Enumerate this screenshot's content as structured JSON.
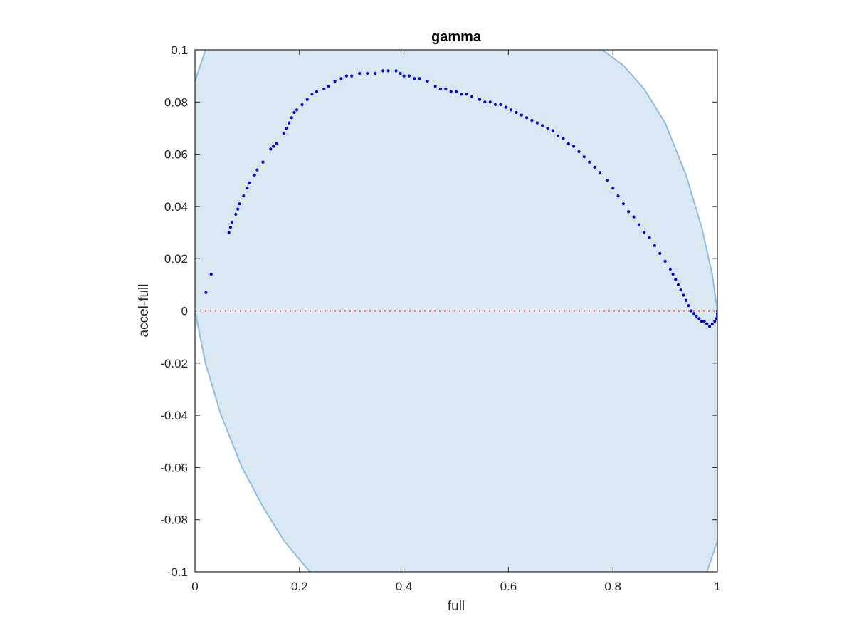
{
  "chart_data": {
    "type": "scatter",
    "title": "gamma",
    "xlabel": "full",
    "ylabel": "accel-full",
    "xlim": [
      0,
      1
    ],
    "ylim": [
      -0.1,
      0.1
    ],
    "x_ticks": [
      0,
      0.2,
      0.4,
      0.6,
      0.8,
      1
    ],
    "x_tick_labels": [
      "0",
      "0.2",
      "0.4",
      "0.6",
      "0.8",
      "1"
    ],
    "y_ticks": [
      -0.1,
      -0.08,
      -0.06,
      -0.04,
      -0.02,
      0,
      0.02,
      0.04,
      0.06,
      0.08,
      0.1
    ],
    "y_tick_labels": [
      "-0.1",
      "-0.08",
      "-0.06",
      "-0.04",
      "-0.02",
      "0",
      "0.02",
      "0.04",
      "0.06",
      "0.08",
      "0.1"
    ],
    "grid": false,
    "colors": {
      "points": "#0000e6",
      "region_fill": "#d9e8f3",
      "region_edge": "#8cbfe2",
      "zero_line": "#ff2a2a",
      "axis": "#262626"
    },
    "region_curves": {
      "left_boundary": [
        {
          "x": 0.0,
          "y": 0.088
        },
        {
          "x": 0.02,
          "y": 0.1
        }
      ],
      "left_lower_boundary": [
        {
          "x": 0.0,
          "y": 0.0
        },
        {
          "x": 0.02,
          "y": -0.02
        },
        {
          "x": 0.05,
          "y": -0.04
        },
        {
          "x": 0.09,
          "y": -0.06
        },
        {
          "x": 0.13,
          "y": -0.075
        },
        {
          "x": 0.17,
          "y": -0.088
        },
        {
          "x": 0.22,
          "y": -0.1
        }
      ],
      "right_upper_boundary": [
        {
          "x": 0.78,
          "y": 0.1
        },
        {
          "x": 0.82,
          "y": 0.094
        },
        {
          "x": 0.86,
          "y": 0.085
        },
        {
          "x": 0.9,
          "y": 0.072
        },
        {
          "x": 0.94,
          "y": 0.052
        },
        {
          "x": 0.97,
          "y": 0.032
        },
        {
          "x": 0.99,
          "y": 0.014
        },
        {
          "x": 1.0,
          "y": 0.0
        }
      ],
      "right_lower_boundary": [
        {
          "x": 0.98,
          "y": -0.1
        },
        {
          "x": 1.0,
          "y": -0.088
        }
      ]
    },
    "zero_line": {
      "y": 0,
      "style": "dotted"
    },
    "points": [
      {
        "x": 0.021,
        "y": 0.007
      },
      {
        "x": 0.031,
        "y": 0.014
      },
      {
        "x": 0.065,
        "y": 0.03
      },
      {
        "x": 0.068,
        "y": 0.032
      },
      {
        "x": 0.071,
        "y": 0.034
      },
      {
        "x": 0.078,
        "y": 0.037
      },
      {
        "x": 0.082,
        "y": 0.039
      },
      {
        "x": 0.085,
        "y": 0.041
      },
      {
        "x": 0.093,
        "y": 0.044
      },
      {
        "x": 0.1,
        "y": 0.047
      },
      {
        "x": 0.104,
        "y": 0.049
      },
      {
        "x": 0.114,
        "y": 0.052
      },
      {
        "x": 0.119,
        "y": 0.054
      },
      {
        "x": 0.13,
        "y": 0.057
      },
      {
        "x": 0.145,
        "y": 0.062
      },
      {
        "x": 0.15,
        "y": 0.063
      },
      {
        "x": 0.156,
        "y": 0.064
      },
      {
        "x": 0.17,
        "y": 0.068
      },
      {
        "x": 0.175,
        "y": 0.07
      },
      {
        "x": 0.18,
        "y": 0.072
      },
      {
        "x": 0.185,
        "y": 0.074
      },
      {
        "x": 0.19,
        "y": 0.076
      },
      {
        "x": 0.195,
        "y": 0.077
      },
      {
        "x": 0.205,
        "y": 0.079
      },
      {
        "x": 0.215,
        "y": 0.081
      },
      {
        "x": 0.224,
        "y": 0.083
      },
      {
        "x": 0.233,
        "y": 0.084
      },
      {
        "x": 0.247,
        "y": 0.085
      },
      {
        "x": 0.256,
        "y": 0.086
      },
      {
        "x": 0.268,
        "y": 0.088
      },
      {
        "x": 0.28,
        "y": 0.089
      },
      {
        "x": 0.29,
        "y": 0.09
      },
      {
        "x": 0.3,
        "y": 0.09
      },
      {
        "x": 0.315,
        "y": 0.091
      },
      {
        "x": 0.33,
        "y": 0.091
      },
      {
        "x": 0.345,
        "y": 0.091
      },
      {
        "x": 0.36,
        "y": 0.092
      },
      {
        "x": 0.37,
        "y": 0.092
      },
      {
        "x": 0.385,
        "y": 0.092
      },
      {
        "x": 0.393,
        "y": 0.091
      },
      {
        "x": 0.4,
        "y": 0.09
      },
      {
        "x": 0.41,
        "y": 0.09
      },
      {
        "x": 0.42,
        "y": 0.089
      },
      {
        "x": 0.43,
        "y": 0.089
      },
      {
        "x": 0.445,
        "y": 0.088
      },
      {
        "x": 0.46,
        "y": 0.086
      },
      {
        "x": 0.47,
        "y": 0.085
      },
      {
        "x": 0.48,
        "y": 0.085
      },
      {
        "x": 0.49,
        "y": 0.084
      },
      {
        "x": 0.5,
        "y": 0.084
      },
      {
        "x": 0.51,
        "y": 0.083
      },
      {
        "x": 0.52,
        "y": 0.083
      },
      {
        "x": 0.53,
        "y": 0.082
      },
      {
        "x": 0.545,
        "y": 0.081
      },
      {
        "x": 0.555,
        "y": 0.08
      },
      {
        "x": 0.565,
        "y": 0.08
      },
      {
        "x": 0.575,
        "y": 0.079
      },
      {
        "x": 0.585,
        "y": 0.079
      },
      {
        "x": 0.595,
        "y": 0.078
      },
      {
        "x": 0.605,
        "y": 0.077
      },
      {
        "x": 0.615,
        "y": 0.076
      },
      {
        "x": 0.625,
        "y": 0.075
      },
      {
        "x": 0.635,
        "y": 0.074
      },
      {
        "x": 0.645,
        "y": 0.073
      },
      {
        "x": 0.655,
        "y": 0.072
      },
      {
        "x": 0.665,
        "y": 0.071
      },
      {
        "x": 0.675,
        "y": 0.07
      },
      {
        "x": 0.685,
        "y": 0.069
      },
      {
        "x": 0.695,
        "y": 0.067
      },
      {
        "x": 0.705,
        "y": 0.066
      },
      {
        "x": 0.715,
        "y": 0.064
      },
      {
        "x": 0.725,
        "y": 0.063
      },
      {
        "x": 0.735,
        "y": 0.061
      },
      {
        "x": 0.745,
        "y": 0.059
      },
      {
        "x": 0.755,
        "y": 0.057
      },
      {
        "x": 0.765,
        "y": 0.055
      },
      {
        "x": 0.775,
        "y": 0.053
      },
      {
        "x": 0.79,
        "y": 0.05
      },
      {
        "x": 0.8,
        "y": 0.047
      },
      {
        "x": 0.81,
        "y": 0.044
      },
      {
        "x": 0.82,
        "y": 0.041
      },
      {
        "x": 0.83,
        "y": 0.038
      },
      {
        "x": 0.84,
        "y": 0.036
      },
      {
        "x": 0.85,
        "y": 0.033
      },
      {
        "x": 0.86,
        "y": 0.03
      },
      {
        "x": 0.87,
        "y": 0.028
      },
      {
        "x": 0.88,
        "y": 0.025
      },
      {
        "x": 0.89,
        "y": 0.022
      },
      {
        "x": 0.9,
        "y": 0.019
      },
      {
        "x": 0.91,
        "y": 0.016
      },
      {
        "x": 0.915,
        "y": 0.014
      },
      {
        "x": 0.92,
        "y": 0.012
      },
      {
        "x": 0.925,
        "y": 0.01
      },
      {
        "x": 0.93,
        "y": 0.008
      },
      {
        "x": 0.935,
        "y": 0.006
      },
      {
        "x": 0.94,
        "y": 0.004
      },
      {
        "x": 0.945,
        "y": 0.002
      },
      {
        "x": 0.95,
        "y": 0.0
      },
      {
        "x": 0.955,
        "y": -0.001
      },
      {
        "x": 0.96,
        "y": -0.002
      },
      {
        "x": 0.965,
        "y": -0.003
      },
      {
        "x": 0.97,
        "y": -0.004
      },
      {
        "x": 0.975,
        "y": -0.004
      },
      {
        "x": 0.98,
        "y": -0.005
      },
      {
        "x": 0.985,
        "y": -0.006
      },
      {
        "x": 0.99,
        "y": -0.005
      },
      {
        "x": 0.995,
        "y": -0.004
      },
      {
        "x": 0.998,
        "y": -0.003
      },
      {
        "x": 1.0,
        "y": -0.002
      },
      {
        "x": 1.0,
        "y": -0.001
      },
      {
        "x": 1.0,
        "y": 0.0
      }
    ]
  }
}
